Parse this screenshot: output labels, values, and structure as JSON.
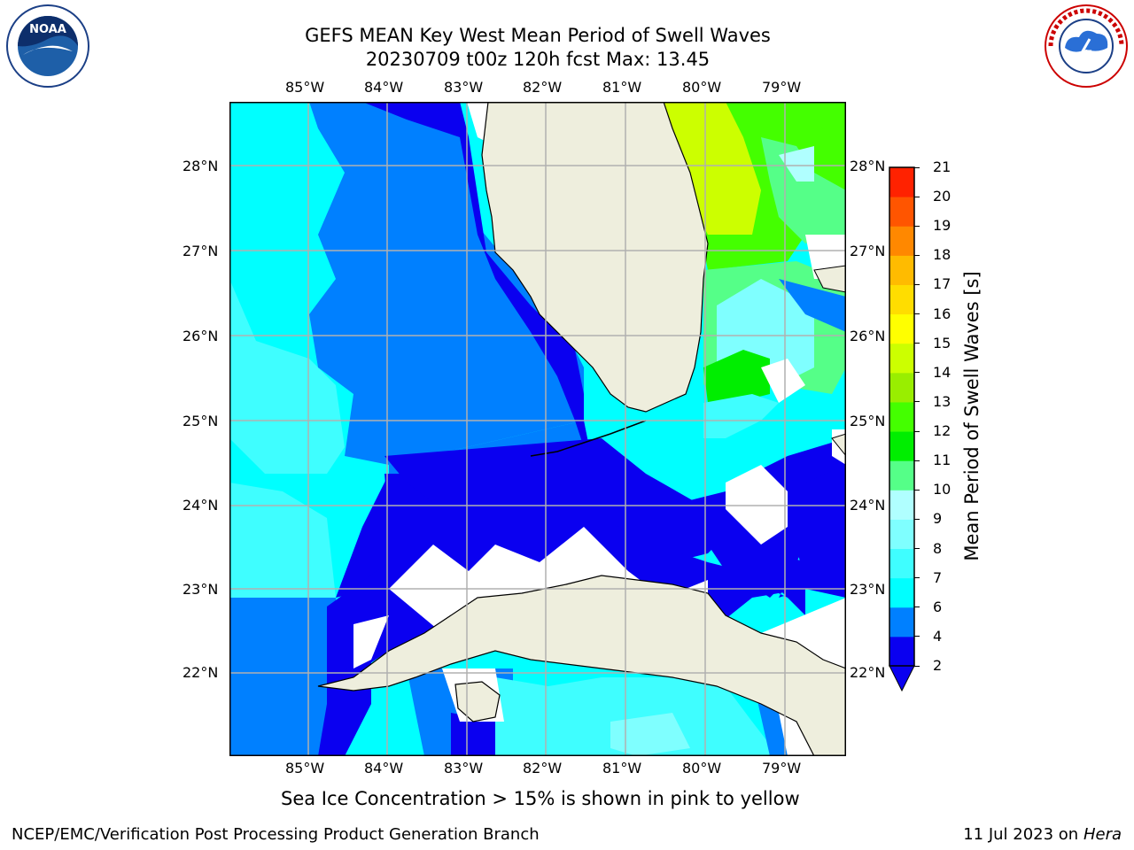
{
  "header": {
    "title_line1": "GEFS MEAN Key West Mean Period of Swell Waves",
    "title_line2": "20230709 t00z 120h fcst   Max: 13.45"
  },
  "logos": {
    "noaa": "noaa-logo",
    "nws": "national-weather-service-logo"
  },
  "map": {
    "lon_labels": [
      "85°W",
      "84°W",
      "83°W",
      "82°W",
      "81°W",
      "80°W",
      "79°W"
    ],
    "lat_labels": [
      "28°N",
      "27°N",
      "26°N",
      "25°N",
      "24°N",
      "23°N",
      "22°N"
    ],
    "land_color": "#eeeedd",
    "grid_color": "#b0b0b0"
  },
  "colorbar": {
    "label": "Mean Period of Swell Waves [s]",
    "ticks": [
      "2",
      "4",
      "6",
      "7",
      "8",
      "9",
      "10",
      "11",
      "12",
      "13",
      "14",
      "15",
      "16",
      "17",
      "18",
      "19",
      "20",
      "21"
    ],
    "colors": [
      "#0a00f0",
      "#0080ff",
      "#00ffff",
      "#3ffeff",
      "#7fffff",
      "#b0ffff",
      "#55ff88",
      "#00ee00",
      "#44ff00",
      "#99ee00",
      "#ccff00",
      "#ffff00",
      "#ffdd00",
      "#ffbb00",
      "#ff8800",
      "#ff5500",
      "#ff2200",
      "#ff0000"
    ]
  },
  "note": "Sea Ice Concentration > 15% is shown in pink to yellow",
  "footer": {
    "left": "NCEP/EMC/Verification Post Processing Product Generation Branch",
    "date": "11 Jul 2023 on ",
    "machine": "Hera"
  }
}
